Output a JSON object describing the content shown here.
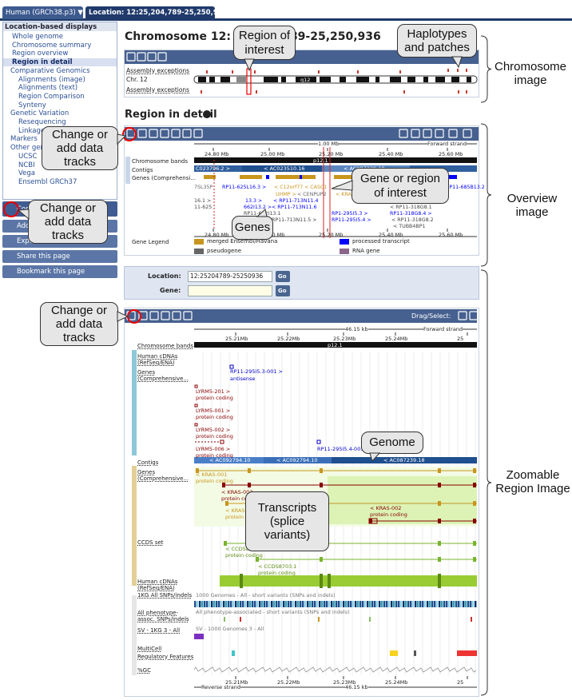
{
  "tabs": [
    "Human (GRCh38.p3) ▼",
    "Location: 12:25,204,789-25,250,936 ▼"
  ],
  "sidebar": {
    "title": "Location-based displays",
    "items": [
      "Whole genome",
      "Chromosome summary",
      "Region overview",
      "Region in detail",
      "Comparative Genomics",
      "Alignments (image)",
      "Alignments (text)",
      "Region Comparison",
      "Synteny",
      "Genetic Variation",
      "Resequencing",
      "Linkage Data",
      "Markers",
      "Other genome browsers",
      "UCSC",
      "NCBI",
      "Vega",
      "Ensembl GRCh37"
    ]
  },
  "buttons": [
    "Configure this page",
    "Add custom data",
    "Export data",
    "Share this page",
    "Bookmark this page"
  ],
  "chromosome": {
    "heading": "Chromosome 12: 25,204,789-25,250,936",
    "assembly_exceptions": "Assembly exceptions",
    "label": "Chr. 12",
    "band": "q12"
  },
  "overview": {
    "heading": "Region in detail",
    "scale": "1.00 Mb",
    "strand": "Forward strand",
    "ticks": [
      "24.80 Mb",
      "25.00 Mb",
      "25.20 Mb",
      "25.40 Mb",
      "25.60 Mb"
    ],
    "band": "p12.1",
    "tracks": [
      "Chromosome bands",
      "Contigs",
      "Genes (Comprehensi..."
    ],
    "contigs": [
      "C023796.2 >",
      "< AC023510.16",
      "< AC087239.18"
    ],
    "genes": [
      "7SL35P",
      "RP11-625L16.3 >",
      "< C12orf77",
      "< CASC1",
      "LYRM5 >",
      "RP11-685B13.2",
      "UHMP >",
      "< CENPUP2",
      "< KRAS",
      "16.1 >",
      "13.3 >",
      "< RP11-713N11.4",
      "11-625",
      "662I13.2 >",
      "< RP11-713N11.6",
      "< RP11-318G8.1",
      "RP11-662I13.1",
      "RP1-295I5.3 >",
      "RP11-318G8.4 >",
      "RP11-713N11.5 >",
      "RP11-295I5.4 >",
      "< RP11-318G8.2",
      "< TUBB4BP1"
    ],
    "legend_title": "Gene Legend",
    "legend": [
      {
        "label": "merged Ensembl/Havana",
        "color": "#c8961e"
      },
      {
        "label": "pseudogene",
        "color": "#666666"
      },
      {
        "label": "processed transcript",
        "color": "#0000ff"
      },
      {
        "label": "RNA gene",
        "color": "#8b668b"
      }
    ]
  },
  "location_form": {
    "location_label": "Location:",
    "location_value": "12:25204789-25250936",
    "gene_label": "Gene:",
    "go": "Go"
  },
  "region": {
    "drag_select": "Drag/Select:",
    "length": "46.15 kb",
    "forward_strand": "Forward strand",
    "reverse_strand": "Reverse strand",
    "ticks": [
      "25.21Mb",
      "25.22Mb",
      "25.23Mb",
      "25.24Mb",
      "25"
    ],
    "band": "p12.1",
    "tracks": [
      "Chromosome bands",
      "Human cDNAs (RefSeq/ENA)",
      "Genes (Comprehensive...",
      "Contigs",
      "Genes (Comprehensive...",
      "CCDS set",
      "Human cDNAs (RefSeq/ENA)",
      "1KG All SNPs/indels",
      "All phenotype-assoc. SNPs/indels",
      "SV - 1KG 3 - All",
      "MultiCell",
      "Regulatory Features",
      "%GC"
    ],
    "contigs": [
      "< AC092794.10",
      "< AC092794.10",
      "< AC087239.18"
    ],
    "features": [
      "RP11-295I5.3-001 >",
      "antisense",
      "LYRM5-201 >",
      "protein coding",
      "LYRM5-001 >",
      "protein coding",
      "LYRM5-002 >",
      "protein coding",
      "LYRM5-006 >",
      "protein coding",
      "RP11-295I5.4-001 >",
      "< KRAS-001",
      "protein coding",
      "< KRAS-003",
      "protein coding",
      "< KRAS-004",
      "protein coding",
      "< KRAS-002",
      "protein coding",
      "< CCDS8702.1",
      "protein coding",
      "< CCDS8703.1",
      "protein coding",
      "1000 Genomes - All - short variants (SNPs and indels)",
      "All phenotype-associated - short variants (SNPs and indels)",
      "SV - 1000 Genomes 3 - All"
    ]
  },
  "callouts": [
    "Region of interest",
    "Haplotypes and patches",
    "Chromosome image",
    "Change or add data tracks",
    "Change or add data tracks",
    "Gene or region of interest",
    "Genes",
    "Overview image",
    "Change or add data tracks",
    "Genome",
    "Transcripts (splice variants)",
    "Zoomable Region Image"
  ]
}
